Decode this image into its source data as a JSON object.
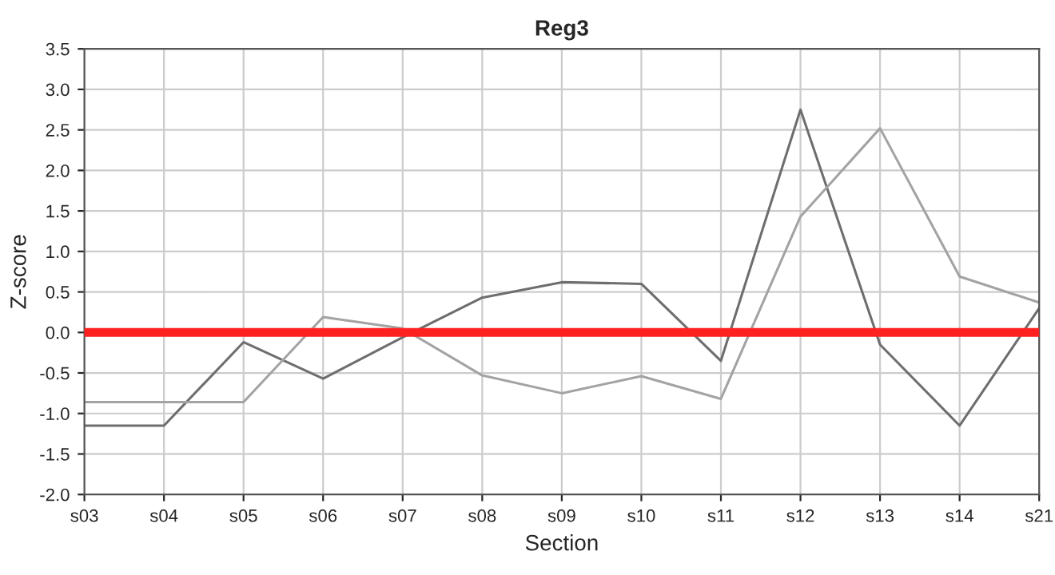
{
  "chart_data": {
    "type": "line",
    "title": "Reg3",
    "xlabel": "Section",
    "ylabel": "Z-score",
    "categories": [
      "s03",
      "s04",
      "s05",
      "s06",
      "s07",
      "s08",
      "s09",
      "s10",
      "s11",
      "s12",
      "s13",
      "s14",
      "s21"
    ],
    "series": [
      {
        "color": "#6e6e6e",
        "values": [
          -1.15,
          -1.15,
          -0.12,
          -0.57,
          -0.06,
          0.43,
          0.62,
          0.6,
          -0.35,
          2.75,
          -0.15,
          -1.15,
          0.3
        ]
      },
      {
        "color": "#a3a3a3",
        "values": [
          -0.86,
          -0.86,
          -0.86,
          0.19,
          0.05,
          -0.53,
          -0.75,
          -0.54,
          -0.82,
          1.43,
          2.52,
          0.69,
          0.37
        ]
      }
    ],
    "ylim": [
      -2.0,
      3.5
    ],
    "yticks": [
      {
        "value": -2.0,
        "label": "-2.0"
      },
      {
        "value": -1.5,
        "label": "-1.5"
      },
      {
        "value": -1.0,
        "label": "-1.0"
      },
      {
        "value": -0.5,
        "label": "-0.5"
      },
      {
        "value": 0.0,
        "label": "0.0"
      },
      {
        "value": 0.5,
        "label": "0.5"
      },
      {
        "value": 1.0,
        "label": "1.0"
      },
      {
        "value": 1.5,
        "label": "1.5"
      },
      {
        "value": 2.0,
        "label": "2.0"
      },
      {
        "value": 2.5,
        "label": "2.5"
      },
      {
        "value": 3.0,
        "label": "3.0"
      },
      {
        "value": 3.5,
        "label": "3.5"
      }
    ],
    "ref_lines": [
      {
        "axis": "y",
        "value": 0,
        "color": "#ff2020"
      }
    ],
    "grid": true,
    "marker": "none",
    "line_style": "solid"
  }
}
